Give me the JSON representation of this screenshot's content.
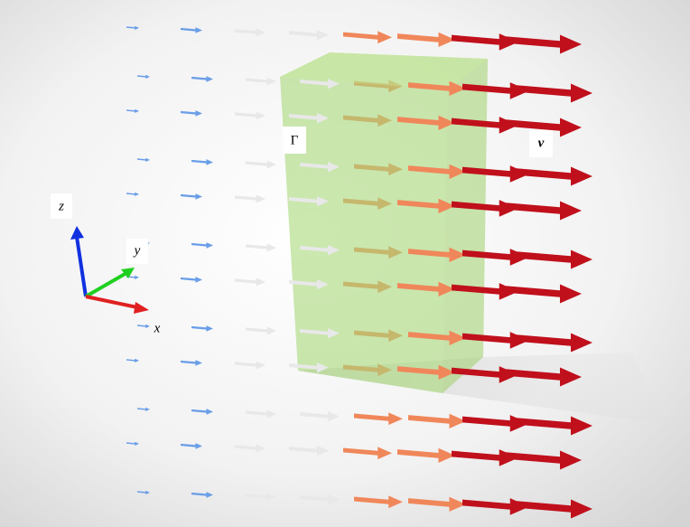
{
  "axes": {
    "z": "z",
    "y": "y",
    "x": "x"
  },
  "labels": {
    "boundary": "Γ",
    "velocity": "v"
  }
}
